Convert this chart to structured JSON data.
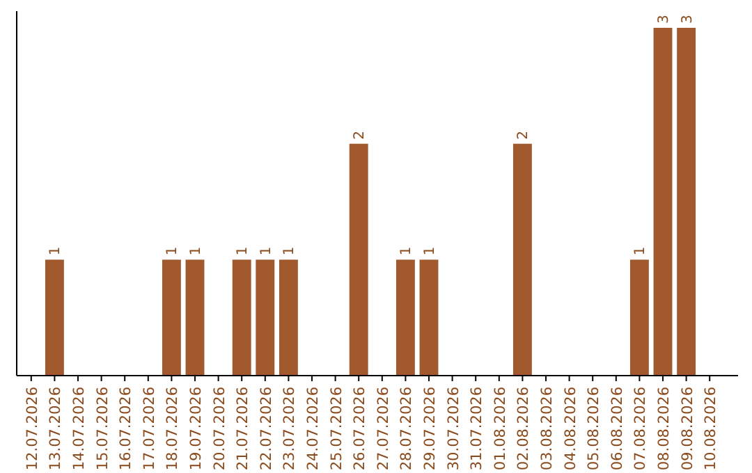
{
  "chart_data": {
    "type": "bar",
    "categories": [
      "12.07.2026",
      "13.07.2026",
      "14.07.2026",
      "15.07.2026",
      "16.07.2026",
      "17.07.2026",
      "18.07.2026",
      "19.07.2026",
      "20.07.2026",
      "21.07.2026",
      "22.07.2026",
      "23.07.2026",
      "24.07.2026",
      "25.07.2026",
      "26.07.2026",
      "27.07.2026",
      "28.07.2026",
      "29.07.2026",
      "30.07.2026",
      "31.07.2026",
      "01.08.2026",
      "02.08.2026",
      "03.08.2026",
      "04.08.2026",
      "05.08.2026",
      "06.08.2026",
      "07.08.2026",
      "08.08.2026",
      "09.08.2026",
      "10.08.2026"
    ],
    "values": [
      null,
      1,
      null,
      null,
      null,
      null,
      1,
      1,
      null,
      1,
      1,
      1,
      null,
      null,
      2,
      null,
      1,
      1,
      null,
      null,
      null,
      2,
      null,
      null,
      null,
      null,
      1,
      3,
      3,
      null
    ],
    "color": "#a0582c",
    "data_labels": true
  }
}
